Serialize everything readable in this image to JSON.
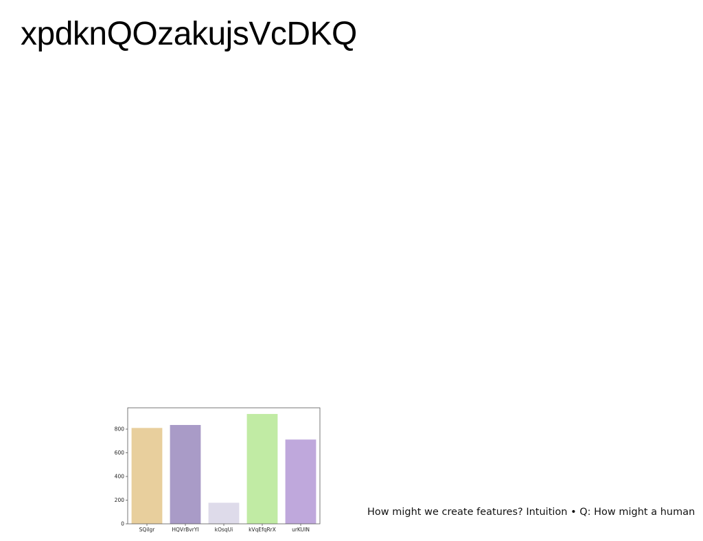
{
  "page": {
    "title": "xpdknQOzakujsVcDKQ",
    "caption": "How might we create features? Intuition • Q: How might a human"
  },
  "chart_data": {
    "type": "bar",
    "title": "",
    "xlabel": "",
    "ylabel": "",
    "categories": [
      "SQilgr",
      "HQVrBvrYI",
      "kOsqUi",
      "kVqEfqRrX",
      "urKUIN"
    ],
    "values": [
      810,
      835,
      178,
      928,
      712
    ],
    "colors": [
      "#e8cf9d",
      "#a99bc7",
      "#dedbea",
      "#c1eba4",
      "#bfa8dc"
    ],
    "ylim": [
      0,
      980
    ],
    "yticks": [
      0,
      200,
      400,
      600,
      800
    ],
    "grid": false,
    "legend": "none"
  }
}
